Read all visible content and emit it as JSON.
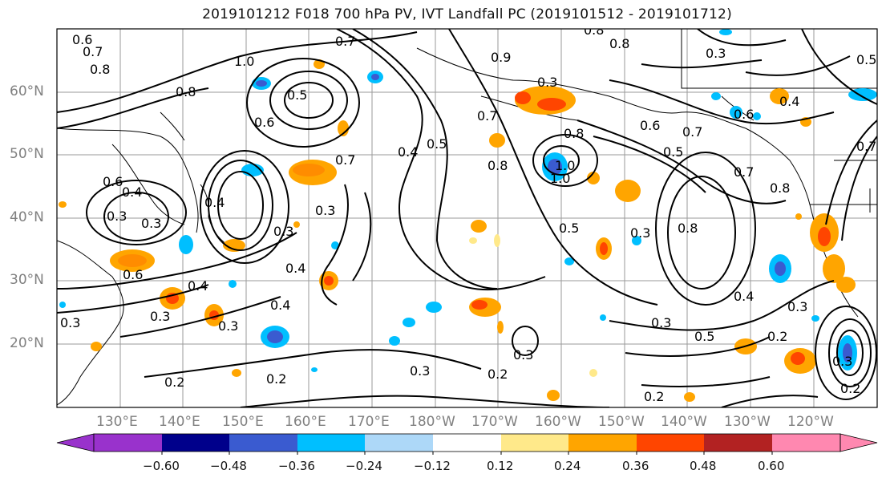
{
  "title": "2019101212 F018 700 hPa PV, IVT Landfall PC (2019101512 - 2019101712)",
  "lat_labels": [
    "60°N",
    "50°N",
    "40°N",
    "30°N",
    "20°N"
  ],
  "lon_labels": [
    "130°E",
    "140°E",
    "150°E",
    "160°E",
    "170°E",
    "180°W",
    "170°W",
    "160°W",
    "150°W",
    "140°W",
    "130°W",
    "120°W"
  ],
  "contour_labels": [
    "0.6",
    "0.7",
    "0.8",
    "1.0",
    "0.7",
    "0.8",
    "0.9",
    "0.3",
    "0.8",
    "0.7",
    "1.0",
    "0.5",
    "0.6",
    "0.8",
    "0.5",
    "0.6",
    "0.7",
    "0.4",
    "0.5",
    "0.7",
    "0.8",
    "1.0",
    "0.8",
    "0.6",
    "0.5",
    "0.7",
    "0.7",
    "0.8",
    "0.6",
    "0.4",
    "0.3",
    "0.4",
    "0.3",
    "0.3",
    "0.8",
    "0.5",
    "0.3",
    "0.3",
    "0.6",
    "0.4",
    "0.4",
    "0.4",
    "0.3",
    "0.3",
    "0.3",
    "0.3",
    "0.3",
    "0.2",
    "0.2",
    "0.2",
    "0.4",
    "0.3",
    "0.2",
    "0.5",
    "0.2",
    "0.2",
    "0.3",
    "0.3",
    "0.3",
    "0.4"
  ],
  "colorbar": {
    "colors": [
      "#9932cc",
      "#00008b",
      "#3a5bd0",
      "#00bfff",
      "#add8f8",
      "#ffffff",
      "#ffe98a",
      "#ffa500",
      "#ff4500",
      "#b22222",
      "#ff88b0"
    ],
    "ticks": [
      "−0.60",
      "−0.48",
      "−0.36",
      "−0.24",
      "−0.12",
      "0.12",
      "0.24",
      "0.36",
      "0.48",
      "0.60"
    ]
  }
}
